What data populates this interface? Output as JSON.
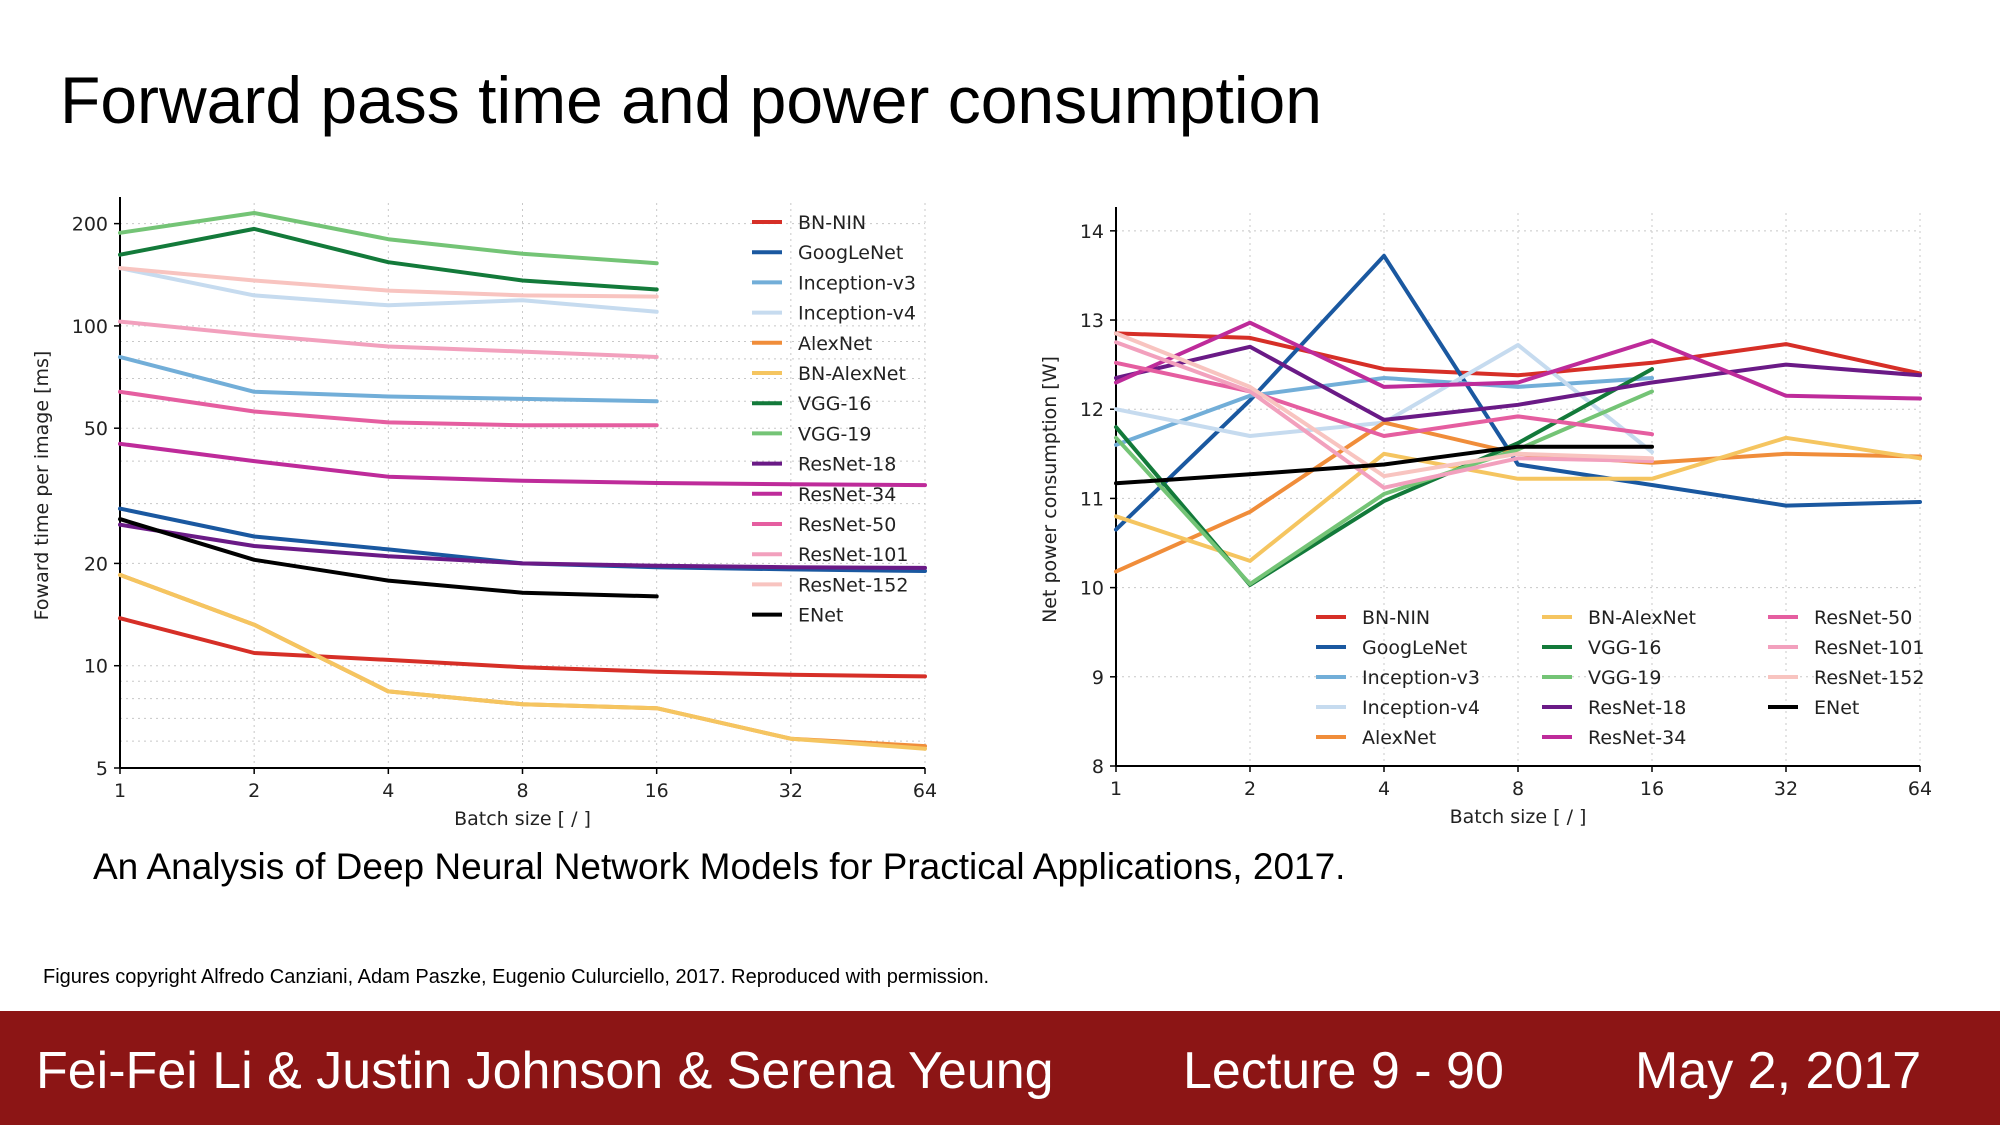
{
  "slide": {
    "title": "Forward pass time and power consumption",
    "citation": "An Analysis of Deep Neural Network Models for Practical Applications, 2017.",
    "copyright": "Figures copyright Alfredo Canziani, Adam Paszke, Eugenio Culurciello, 2017. Reproduced with permission."
  },
  "footer": {
    "authors": "Fei-Fei Li & Justin Johnson & Serena Yeung",
    "lecture": "Lecture 9 - 90",
    "date": "May 2, 2017"
  },
  "colors": {
    "footer_bg": "#8c1515",
    "BN-NIN": "#d62f27",
    "GoogLeNet": "#1a58a0",
    "Inception-v3": "#72aed8",
    "Inception-v4": "#c6dbef",
    "AlexNet": "#f08d3a",
    "BN-AlexNet": "#f5c560",
    "VGG-16": "#137a3a",
    "VGG-19": "#74c476",
    "ResNet-18": "#6a1a86",
    "ResNet-34": "#be2b9a",
    "ResNet-50": "#e55ea0",
    "ResNet-101": "#f2a0bd",
    "ResNet-152": "#f8c4c0",
    "ENet": "#000000"
  },
  "chart_data": [
    {
      "type": "line",
      "xscale": "log2",
      "yscale": "log",
      "xlabel": "Batch size [ / ]",
      "ylabel": "Foward time per image [ms]",
      "x_ticks": [
        1,
        2,
        4,
        8,
        16,
        32,
        64
      ],
      "y_ticks": [
        5,
        10,
        20,
        50,
        100,
        200
      ],
      "ylim": [
        5,
        230
      ],
      "grid": true,
      "legend_position": "top-right",
      "series": [
        {
          "name": "BN-NIN",
          "x": [
            1,
            2,
            4,
            8,
            16,
            32,
            64
          ],
          "values": [
            13.8,
            10.9,
            10.4,
            9.9,
            9.6,
            9.4,
            9.3
          ]
        },
        {
          "name": "GoogLeNet",
          "x": [
            1,
            2,
            4,
            8,
            16,
            32,
            64
          ],
          "values": [
            29,
            24,
            22,
            20,
            19.5,
            19.2,
            19.0
          ]
        },
        {
          "name": "Inception-v3",
          "x": [
            1,
            2,
            4,
            8,
            16
          ],
          "values": [
            81,
            64,
            62,
            61,
            60
          ]
        },
        {
          "name": "Inception-v4",
          "x": [
            1,
            2,
            4,
            8,
            16
          ],
          "values": [
            148,
            123,
            115,
            119,
            110
          ]
        },
        {
          "name": "AlexNet",
          "x": [
            1,
            2,
            4,
            8,
            16,
            32,
            64
          ],
          "values": [
            18.5,
            13.2,
            8.4,
            7.7,
            7.5,
            6.1,
            5.8
          ]
        },
        {
          "name": "BN-AlexNet",
          "x": [
            1,
            2,
            4,
            8,
            16,
            32,
            64
          ],
          "values": [
            18.5,
            13.2,
            8.4,
            7.7,
            7.5,
            6.1,
            5.7
          ]
        },
        {
          "name": "VGG-16",
          "x": [
            1,
            2,
            4,
            8,
            16
          ],
          "values": [
            162,
            193,
            154,
            136,
            128
          ]
        },
        {
          "name": "VGG-19",
          "x": [
            1,
            2,
            4,
            8,
            16
          ],
          "values": [
            188,
            215,
            180,
            163,
            153
          ]
        },
        {
          "name": "ResNet-18",
          "x": [
            1,
            2,
            4,
            8,
            16,
            32,
            64
          ],
          "values": [
            26,
            22.5,
            21,
            20,
            19.7,
            19.5,
            19.4
          ]
        },
        {
          "name": "ResNet-34",
          "x": [
            1,
            2,
            4,
            8,
            16,
            32,
            64
          ],
          "values": [
            45,
            40,
            36,
            35,
            34.5,
            34.2,
            34
          ]
        },
        {
          "name": "ResNet-50",
          "x": [
            1,
            2,
            4,
            8,
            16
          ],
          "values": [
            64,
            56,
            52,
            51,
            51
          ]
        },
        {
          "name": "ResNet-101",
          "x": [
            1,
            2,
            4,
            8,
            16
          ],
          "values": [
            103,
            94,
            87,
            84,
            81
          ]
        },
        {
          "name": "ResNet-152",
          "x": [
            1,
            2,
            4,
            8,
            16
          ],
          "values": [
            148,
            136,
            127,
            123,
            122
          ]
        },
        {
          "name": "ENet",
          "x": [
            1,
            2,
            4,
            8,
            16
          ],
          "values": [
            27,
            20.5,
            17.8,
            16.4,
            16
          ]
        }
      ]
    },
    {
      "type": "line",
      "xscale": "log2",
      "xlabel": "Batch size [ / ]",
      "ylabel": "Net power consumption [W]",
      "x_ticks": [
        1,
        2,
        4,
        8,
        16,
        32,
        64
      ],
      "y_ticks": [
        8,
        9,
        10,
        11,
        12,
        13,
        14
      ],
      "ylim": [
        8,
        14.2
      ],
      "grid": true,
      "legend_position": "lower-right",
      "series": [
        {
          "name": "BN-NIN",
          "x": [
            1,
            2,
            4,
            8,
            16,
            32,
            64
          ],
          "values": [
            12.85,
            12.8,
            12.45,
            12.38,
            12.52,
            12.73,
            12.4
          ]
        },
        {
          "name": "GoogLeNet",
          "x": [
            1,
            2,
            4,
            8,
            16,
            32,
            64
          ],
          "values": [
            10.65,
            12.1,
            13.72,
            11.38,
            11.15,
            10.92,
            10.96
          ]
        },
        {
          "name": "Inception-v3",
          "x": [
            1,
            2,
            4,
            8,
            16
          ],
          "values": [
            11.6,
            12.15,
            12.35,
            12.25,
            12.35
          ]
        },
        {
          "name": "Inception-v4",
          "x": [
            1,
            2,
            4,
            8,
            16
          ],
          "values": [
            12.0,
            11.7,
            11.85,
            12.72,
            11.52
          ]
        },
        {
          "name": "AlexNet",
          "x": [
            1,
            2,
            4,
            8,
            16,
            32,
            64
          ],
          "values": [
            10.18,
            10.85,
            11.85,
            11.5,
            11.4,
            11.5,
            11.47
          ]
        },
        {
          "name": "BN-AlexNet",
          "x": [
            1,
            2,
            4,
            8,
            16,
            32,
            64
          ],
          "values": [
            10.8,
            10.3,
            11.5,
            11.22,
            11.22,
            11.68,
            11.45
          ]
        },
        {
          "name": "VGG-16",
          "x": [
            1,
            2,
            4,
            8,
            16
          ],
          "values": [
            11.8,
            10.03,
            10.97,
            11.62,
            12.45
          ]
        },
        {
          "name": "VGG-19",
          "x": [
            1,
            2,
            4,
            8,
            16
          ],
          "values": [
            11.68,
            10.04,
            11.05,
            11.55,
            12.2
          ]
        },
        {
          "name": "ResNet-18",
          "x": [
            1,
            2,
            4,
            8,
            16,
            32,
            64
          ],
          "values": [
            12.35,
            12.7,
            11.88,
            12.05,
            12.3,
            12.5,
            12.38
          ]
        },
        {
          "name": "ResNet-34",
          "x": [
            1,
            2,
            4,
            8,
            16,
            32,
            64
          ],
          "values": [
            12.3,
            12.97,
            12.25,
            12.3,
            12.77,
            12.15,
            12.12
          ]
        },
        {
          "name": "ResNet-50",
          "x": [
            1,
            2,
            4,
            8,
            16
          ],
          "values": [
            12.52,
            12.2,
            11.7,
            11.92,
            11.72
          ]
        },
        {
          "name": "ResNet-101",
          "x": [
            1,
            2,
            4,
            8,
            16
          ],
          "values": [
            12.75,
            12.2,
            11.12,
            11.45,
            11.42
          ]
        },
        {
          "name": "ResNet-152",
          "x": [
            1,
            2,
            4,
            8,
            16
          ],
          "values": [
            12.85,
            12.25,
            11.25,
            11.5,
            11.45
          ]
        },
        {
          "name": "ENet",
          "x": [
            1,
            2,
            4,
            8,
            16
          ],
          "values": [
            11.17,
            11.27,
            11.38,
            11.58,
            11.58
          ]
        }
      ]
    }
  ]
}
